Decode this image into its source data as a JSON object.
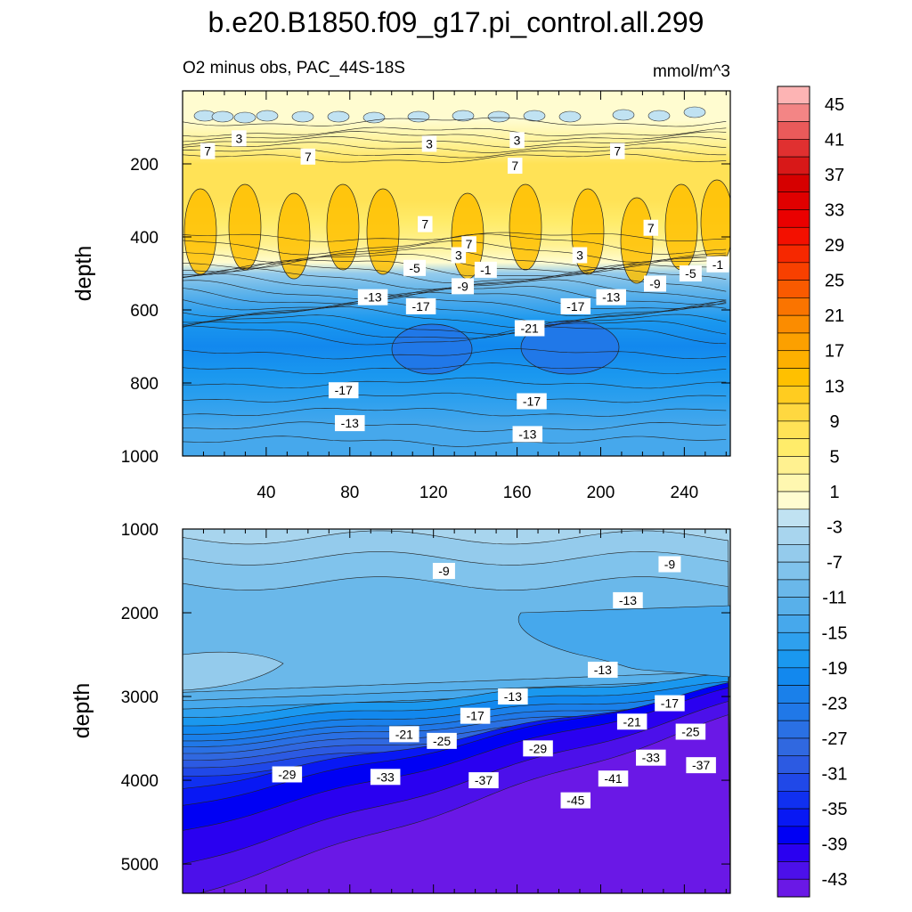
{
  "chart_data": {
    "type": "heatmap",
    "title": "b.e20.B1850.f09_g17.pi_control.all.299",
    "subtitle_left": "O2 minus obs, PAC_44S-18S",
    "units": "mmol/m^3",
    "xlabel": "",
    "ylabel": "depth",
    "xticks": [
      40,
      80,
      120,
      160,
      200,
      240
    ],
    "xlim": [
      0,
      262
    ],
    "upper_panel": {
      "ylim": [
        0,
        1000
      ],
      "yticks": [
        200,
        400,
        600,
        800,
        1000
      ],
      "bands": [
        {
          "depth": 0,
          "value": -0.5
        },
        {
          "depth": 80,
          "value": 0.5
        },
        {
          "depth": 115,
          "value": 2.5
        },
        {
          "depth": 150,
          "value": 5
        },
        {
          "depth": 200,
          "value": 7.5
        },
        {
          "depth": 300,
          "value": 8.5
        },
        {
          "depth": 360,
          "value": 7
        },
        {
          "depth": 420,
          "value": 4
        },
        {
          "depth": 470,
          "value": 0
        },
        {
          "depth": 500,
          "value": -5
        },
        {
          "depth": 540,
          "value": -10
        },
        {
          "depth": 580,
          "value": -14
        },
        {
          "depth": 630,
          "value": -17
        },
        {
          "depth": 700,
          "value": -19
        },
        {
          "depth": 780,
          "value": -18
        },
        {
          "depth": 850,
          "value": -16
        },
        {
          "depth": 920,
          "value": -14
        },
        {
          "depth": 1000,
          "value": -13
        }
      ],
      "contour_labels": [
        {
          "x": 12,
          "depth": 165,
          "text": "7"
        },
        {
          "x": 27,
          "depth": 130,
          "text": "3"
        },
        {
          "x": 60,
          "depth": 180,
          "text": "7"
        },
        {
          "x": 118,
          "depth": 145,
          "text": "3"
        },
        {
          "x": 160,
          "depth": 135,
          "text": "3"
        },
        {
          "x": 159,
          "depth": 205,
          "text": "7"
        },
        {
          "x": 208,
          "depth": 165,
          "text": "7"
        },
        {
          "x": 116,
          "depth": 365,
          "text": "7"
        },
        {
          "x": 137,
          "depth": 420,
          "text": "7"
        },
        {
          "x": 132,
          "depth": 450,
          "text": "3"
        },
        {
          "x": 190,
          "depth": 450,
          "text": "3"
        },
        {
          "x": 224,
          "depth": 375,
          "text": "7"
        },
        {
          "x": 111,
          "depth": 485,
          "text": "-5"
        },
        {
          "x": 145,
          "depth": 490,
          "text": "-1"
        },
        {
          "x": 134,
          "depth": 535,
          "text": "-9"
        },
        {
          "x": 226,
          "depth": 528,
          "text": "-9"
        },
        {
          "x": 243,
          "depth": 500,
          "text": "-5"
        },
        {
          "x": 256,
          "depth": 475,
          "text": "-1"
        },
        {
          "x": 91,
          "depth": 565,
          "text": "-13"
        },
        {
          "x": 114,
          "depth": 590,
          "text": "-17"
        },
        {
          "x": 188,
          "depth": 590,
          "text": "-17"
        },
        {
          "x": 205,
          "depth": 565,
          "text": "-13"
        },
        {
          "x": 166,
          "depth": 650,
          "text": "-21"
        },
        {
          "x": 77,
          "depth": 820,
          "text": "-17"
        },
        {
          "x": 167,
          "depth": 850,
          "text": "-17"
        },
        {
          "x": 80,
          "depth": 910,
          "text": "-13"
        },
        {
          "x": 165,
          "depth": 940,
          "text": "-13"
        }
      ]
    },
    "lower_panel": {
      "ylim": [
        1000,
        5350
      ],
      "yticks": [
        1000,
        2000,
        3000,
        4000,
        5000
      ],
      "contour_labels": [
        {
          "x": 125,
          "depth": 1500,
          "text": "-9"
        },
        {
          "x": 233,
          "depth": 1420,
          "text": "-9"
        },
        {
          "x": 213,
          "depth": 1850,
          "text": "-13"
        },
        {
          "x": 201,
          "depth": 2680,
          "text": "-13"
        },
        {
          "x": 158,
          "depth": 3000,
          "text": "-13"
        },
        {
          "x": 140,
          "depth": 3230,
          "text": "-17"
        },
        {
          "x": 233,
          "depth": 3080,
          "text": "-17"
        },
        {
          "x": 106,
          "depth": 3450,
          "text": "-21"
        },
        {
          "x": 215,
          "depth": 3300,
          "text": "-21"
        },
        {
          "x": 124,
          "depth": 3530,
          "text": "-25"
        },
        {
          "x": 243,
          "depth": 3420,
          "text": "-25"
        },
        {
          "x": 170,
          "depth": 3620,
          "text": "-29"
        },
        {
          "x": 50,
          "depth": 3930,
          "text": "-29"
        },
        {
          "x": 97,
          "depth": 3960,
          "text": "-33"
        },
        {
          "x": 224,
          "depth": 3730,
          "text": "-33"
        },
        {
          "x": 144,
          "depth": 4000,
          "text": "-37"
        },
        {
          "x": 248,
          "depth": 3820,
          "text": "-37"
        },
        {
          "x": 206,
          "depth": 3980,
          "text": "-41"
        },
        {
          "x": 188,
          "depth": 4240,
          "text": "-45"
        }
      ]
    },
    "colorbar": {
      "ticks": [
        "45",
        "41",
        "37",
        "33",
        "29",
        "25",
        "21",
        "17",
        "13",
        "9",
        "5",
        "1",
        "-3",
        "-7",
        "-11",
        "-15",
        "-19",
        "-23",
        "-27",
        "-31",
        "-35",
        "-39",
        "-43"
      ],
      "levels": [
        47,
        45,
        43,
        41,
        39,
        37,
        35,
        33,
        31,
        29,
        27,
        25,
        23,
        21,
        19,
        17,
        15,
        13,
        11,
        9,
        7,
        5,
        3,
        1,
        -1,
        -3,
        -5,
        -7,
        -9,
        -11,
        -13,
        -15,
        -17,
        -19,
        -21,
        -23,
        -25,
        -27,
        -29,
        -31,
        -33,
        -35,
        -37,
        -39,
        -41,
        -43,
        -45
      ],
      "colors": [
        "#fdb4b4",
        "#f38585",
        "#ea5a5a",
        "#e03030",
        "#d81818",
        "#d60000",
        "#e00000",
        "#ea0000",
        "#f31000",
        "#f62800",
        "#f84000",
        "#f95a00",
        "#fa7400",
        "#fb8c00",
        "#fca000",
        "#fdb000",
        "#ffc000",
        "#ffcc20",
        "#ffd840",
        "#ffe256",
        "#ffec6a",
        "#fff190",
        "#fff7b0",
        "#fffcd0",
        "#c0e2f2",
        "#a8d5ee",
        "#94cbec",
        "#80c3ec",
        "#6ab8ea",
        "#58b0ea",
        "#46a8ec",
        "#2ea0ee",
        "#1a98ef",
        "#1288ee",
        "#1a80ea",
        "#2078e8",
        "#2a70e4",
        "#3068e0",
        "#2c5ae2",
        "#2048e8",
        "#1030f0",
        "#0818f4",
        "#0000f4",
        "#2a00f0",
        "#4c10ea",
        "#6a18e6"
      ]
    }
  }
}
